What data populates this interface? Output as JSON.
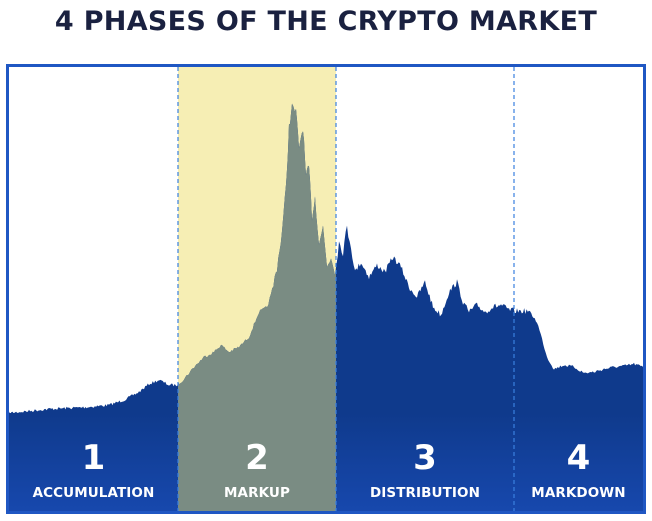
{
  "title": "4 PHASES OF THE CRYPTO MARKET",
  "colors": {
    "frame": "#1f57c3",
    "area": "#0f3a8c",
    "band_bottom": "#1748ad",
    "highlight": "#f6eeb4",
    "highlight_overlap": "#7a8c83",
    "divider": "#3a80e0",
    "title": "#1a2140"
  },
  "phases": [
    {
      "number": "1",
      "label": "ACCUMULATION"
    },
    {
      "number": "2",
      "label": "MARKUP"
    },
    {
      "number": "3",
      "label": "DISTRIBUTION"
    },
    {
      "number": "4",
      "label": "MARKDOWN"
    }
  ]
}
